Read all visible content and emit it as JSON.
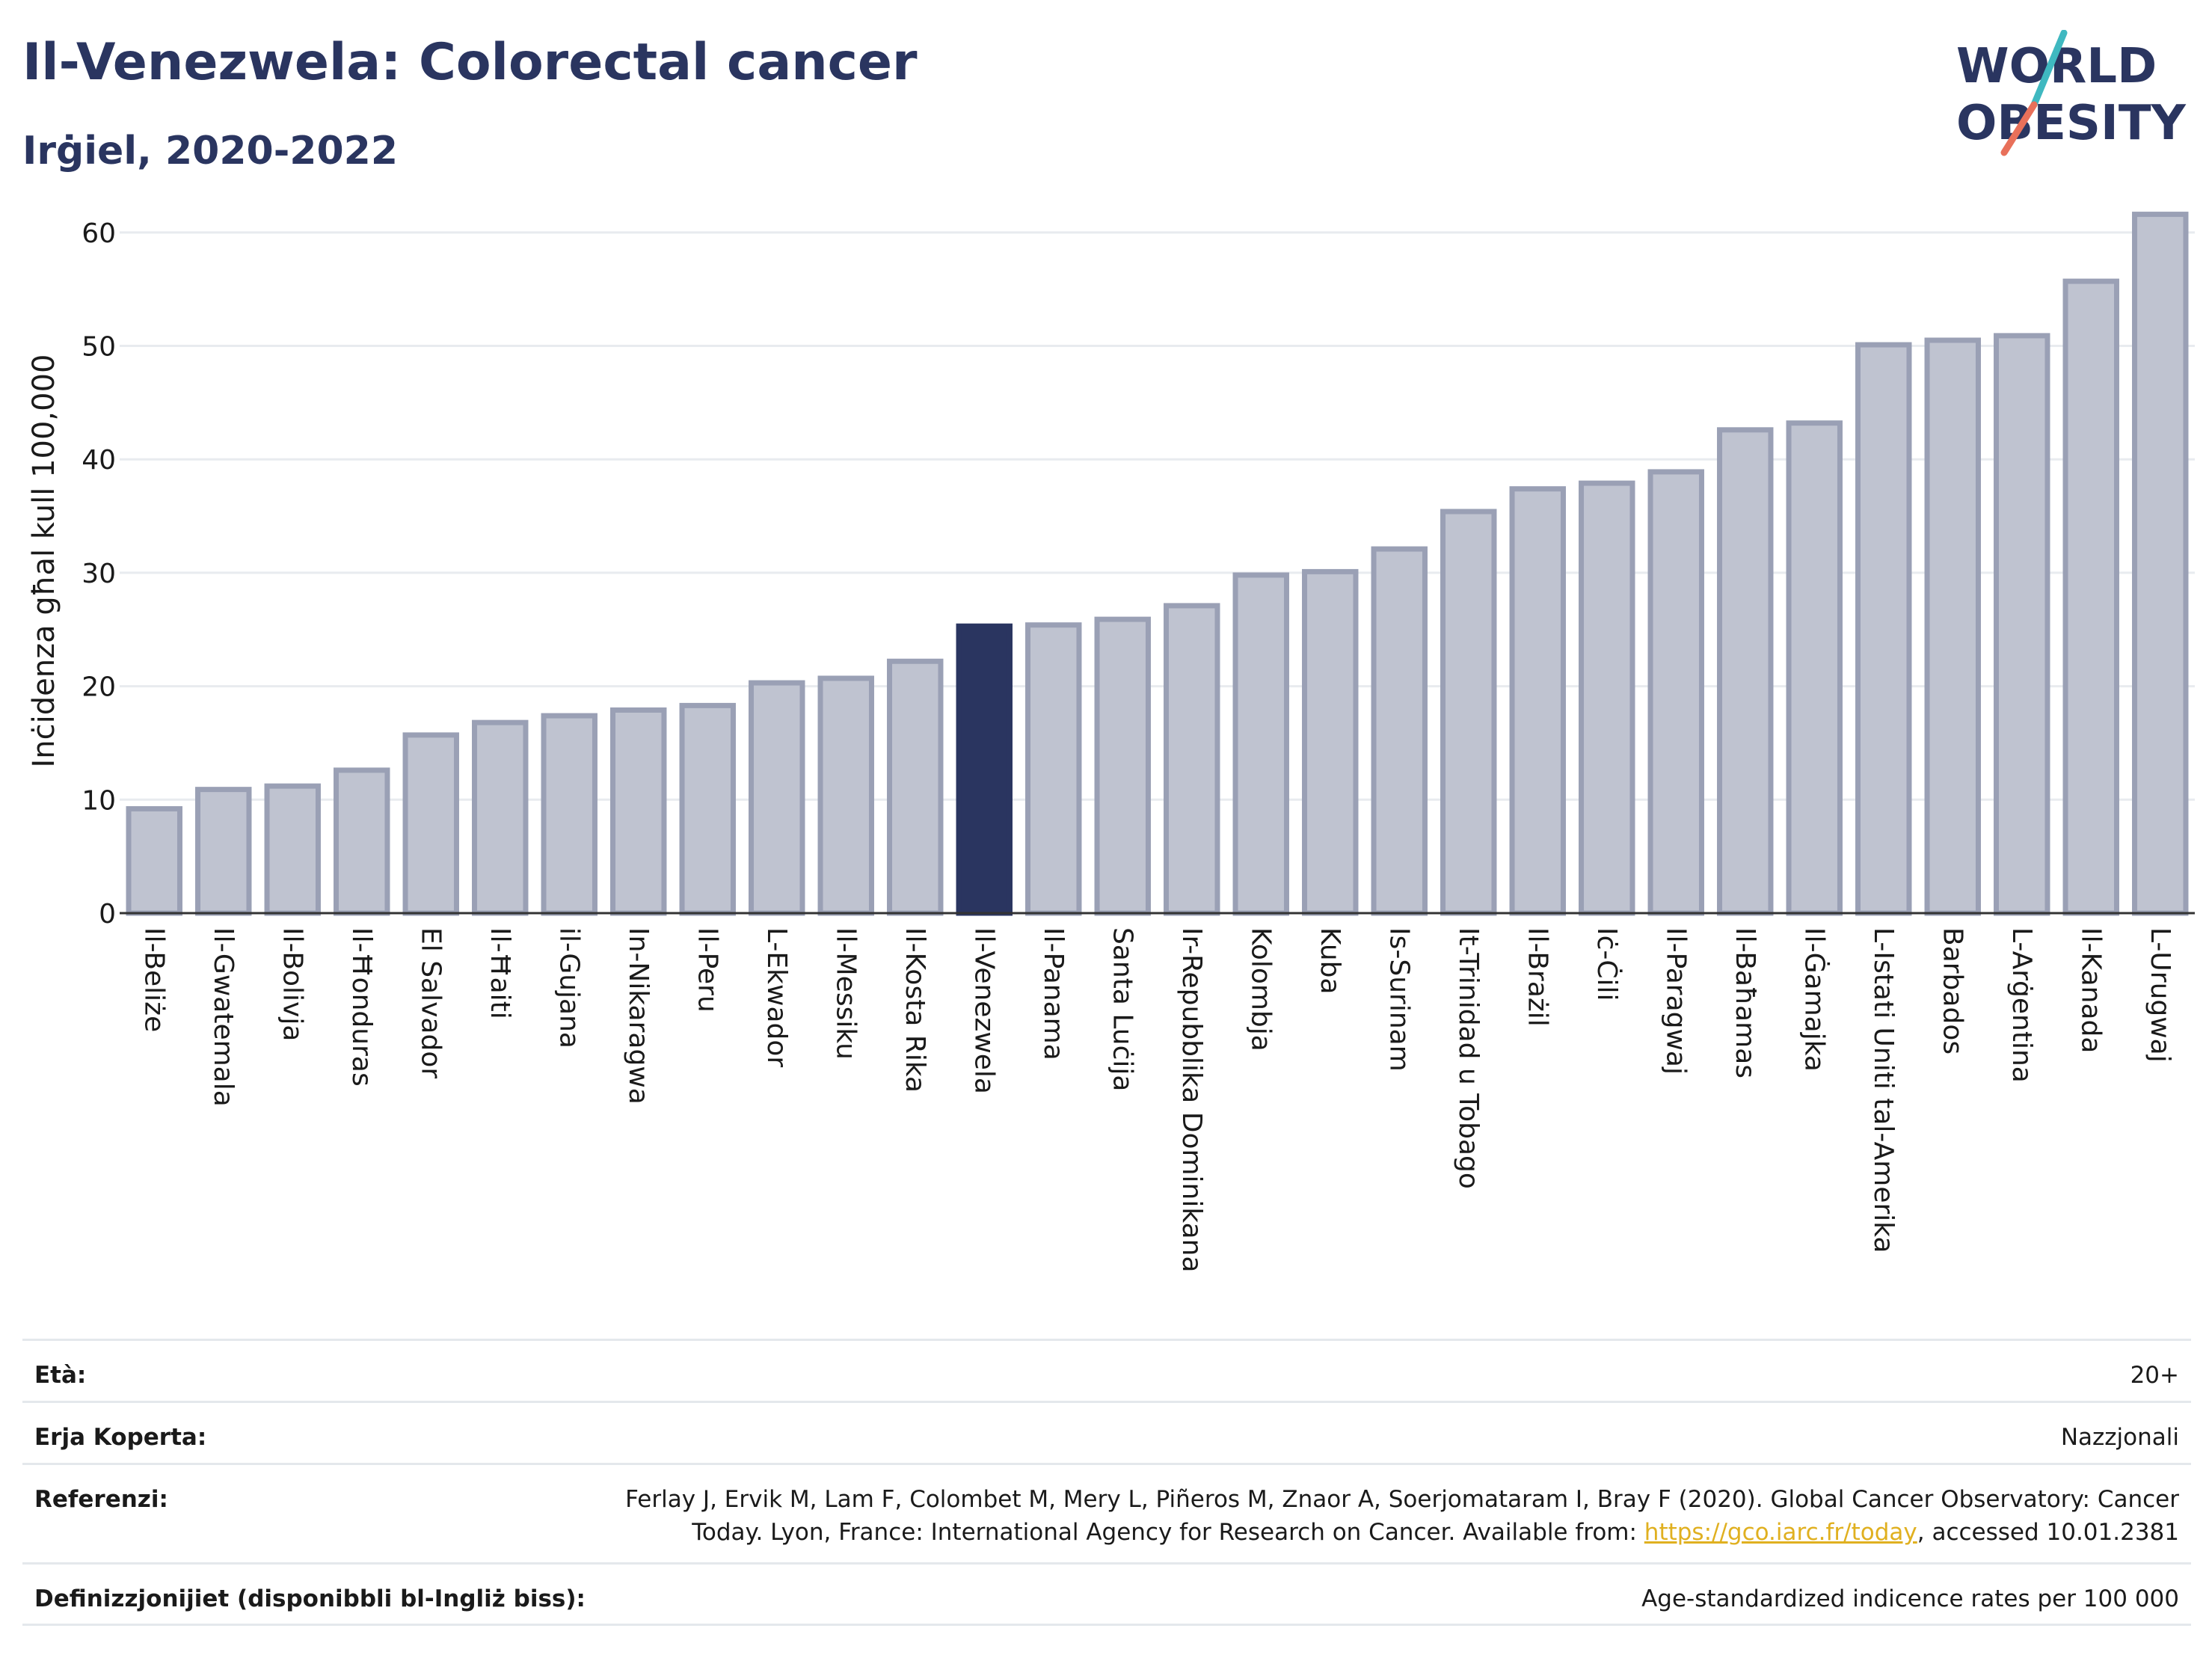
{
  "header": {
    "title": "Il-Venezwela: Colorectal cancer",
    "subtitle": "Irġiel, 2020-2022"
  },
  "logo": {
    "line1": "WORLD",
    "line2": "OBESITY",
    "accent_teal": "#3fb8c0",
    "accent_red": "#e8705a"
  },
  "colors": {
    "bar": "#bfc3d0",
    "bar_stroke": "#9aa0b5",
    "highlight": "#2a3560",
    "grid": "#e8ebef"
  },
  "chart_data": {
    "type": "bar",
    "ylabel": "Inċidenza għal kull 100,000",
    "ylim": [
      0,
      65
    ],
    "yticks": [
      0,
      10,
      20,
      30,
      40,
      50,
      60
    ],
    "grid": true,
    "highlight": "Il-Venezwela",
    "categories": [
      "Il-Beliże",
      "Il-Gwatemala",
      "Il-Bolivja",
      "Il-Ħonduras",
      "El Salvador",
      "Il-Ħaiti",
      "il-Gujana",
      "In-Nikaragwa",
      "Il-Peru",
      "L-Ekwador",
      "Il-Messiku",
      "Il-Kosta Rika",
      "Il-Venezwela",
      "Il-Panama",
      "Santa Luċija",
      "Ir-Repubblika Dominikana",
      "Kolombja",
      "Kuba",
      "Is-Surinam",
      "It-Trinidad u Tobago",
      "Il-Brażil",
      "Iċ-Ċili",
      "Il-Paragwaj",
      "Il-Baħamas",
      "Il-Ġamajka",
      "L-Istati Uniti tal-Amerika",
      "Barbados",
      "L-Arġentina",
      "Il-Kanada",
      "L-Urugwaj"
    ],
    "values": [
      9.2,
      10.9,
      11.2,
      12.6,
      15.7,
      16.8,
      17.4,
      17.9,
      18.3,
      20.3,
      20.7,
      22.2,
      25.3,
      25.4,
      25.9,
      27.1,
      29.8,
      30.1,
      32.1,
      35.4,
      37.4,
      37.9,
      38.9,
      42.6,
      43.2,
      50.1,
      50.5,
      50.9,
      55.7,
      61.6
    ]
  },
  "footer": {
    "rows": [
      {
        "label": "Età:",
        "value": "20+"
      },
      {
        "label": "Erja Koperta:",
        "value": "Nazzjonali"
      },
      {
        "label": "Referenzi:",
        "value_line1": "Ferlay J, Ervik M, Lam F, Colombet M, Mery L, Piñeros M, Znaor A, Soerjomataram I, Bray F (2020). Global Cancer Observatory: Cancer",
        "value_line2_pre": "Today. Lyon, France: International Agency for Research on Cancer. Available from: ",
        "link": "https://gco.iarc.fr/today",
        "value_line2_post": ", accessed 10.01.2381"
      },
      {
        "label": "Definizzjonijiet (disponibbli bl-Ingliż biss):",
        "value": "Age-standardized indicence rates per 100 000"
      }
    ]
  }
}
